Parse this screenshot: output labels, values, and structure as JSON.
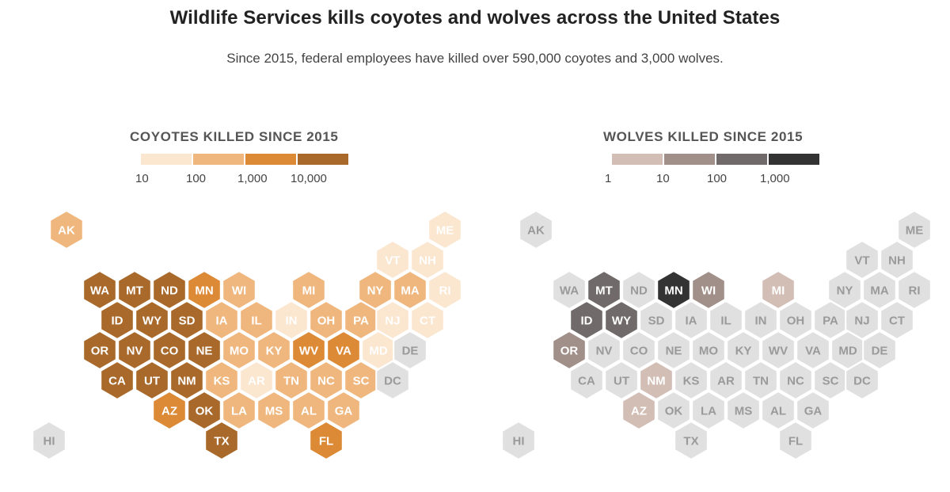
{
  "title": "Wildlife Services kills coyotes and wolves across the United States",
  "subtitle": "Since 2015, federal employees have killed over 590,000 coyotes and 3,000 wolves.",
  "colors": {
    "nodata": "#e0e0e0",
    "coyote": [
      "#fbe6cf",
      "#efb77e",
      "#dd8a37",
      "#a8692b"
    ],
    "wolf": [
      "#d2beb5",
      "#a18f89",
      "#706b6a",
      "#333333"
    ]
  },
  "maps": [
    {
      "id": "coyotes",
      "legend_title": "COYOTES KILLED SINCE 2015",
      "legend_ticks": [
        "10",
        "100",
        "1,000",
        "10,000"
      ],
      "palette": "coyote",
      "states": {
        "AK": 1,
        "ME": 0,
        "VT": 0,
        "NH": 0,
        "WA": 3,
        "MT": 3,
        "ND": 3,
        "MN": 2,
        "WI": 1,
        "MI": 1,
        "NY": 1,
        "MA": 1,
        "RI": 0,
        "ID": 3,
        "WY": 3,
        "SD": 3,
        "IA": 1,
        "IL": 1,
        "IN": 0,
        "OH": 1,
        "PA": 1,
        "NJ": 0,
        "CT": 0,
        "OR": 3,
        "NV": 3,
        "CO": 3,
        "NE": 3,
        "MO": 1,
        "KY": 1,
        "WV": 2,
        "VA": 2,
        "MD": 0,
        "DE": -1,
        "CA": 3,
        "UT": 3,
        "NM": 3,
        "KS": 1,
        "AR": 0,
        "TN": 1,
        "NC": 1,
        "SC": 1,
        "DC": -1,
        "AZ": 2,
        "OK": 3,
        "LA": 1,
        "MS": 1,
        "AL": 1,
        "GA": 1,
        "TX": 3,
        "FL": 2,
        "HI": -1
      }
    },
    {
      "id": "wolves",
      "legend_title": "WOLVES KILLED SINCE 2015",
      "legend_ticks": [
        "1",
        "10",
        "100",
        "1,000"
      ],
      "palette": "wolf",
      "states": {
        "AK": -1,
        "ME": -1,
        "VT": -1,
        "NH": -1,
        "WA": -1,
        "MT": 2,
        "ND": -1,
        "MN": 3,
        "WI": 1,
        "MI": 0,
        "NY": -1,
        "MA": -1,
        "RI": -1,
        "ID": 2,
        "WY": 2,
        "SD": -1,
        "IA": -1,
        "IL": -1,
        "IN": -1,
        "OH": -1,
        "PA": -1,
        "NJ": -1,
        "CT": -1,
        "OR": 1,
        "NV": -1,
        "CO": -1,
        "NE": -1,
        "MO": -1,
        "KY": -1,
        "WV": -1,
        "VA": -1,
        "MD": -1,
        "DE": -1,
        "CA": -1,
        "UT": -1,
        "NM": 0,
        "KS": -1,
        "AR": -1,
        "TN": -1,
        "NC": -1,
        "SC": -1,
        "DC": -1,
        "AZ": 0,
        "OK": -1,
        "LA": -1,
        "MS": -1,
        "AL": -1,
        "GA": -1,
        "TX": -1,
        "FL": -1,
        "HI": -1
      }
    }
  ]
}
